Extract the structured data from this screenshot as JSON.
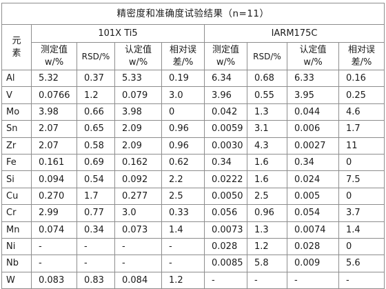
{
  "title": "精密度和准确度试验结果（n=11）",
  "element_header": "元素",
  "groups": [
    "101X Ti5",
    "IARM175C"
  ],
  "subheaders": [
    {
      "line1": "测定值",
      "line2": "w/%"
    },
    {
      "line1": "RSD/%",
      "line2": ""
    },
    {
      "line1": "认定值",
      "line2": "w/%"
    },
    {
      "line1": "相对误",
      "line2": "差/%"
    }
  ],
  "rows": [
    {
      "el": "Al",
      "v": [
        "5.32",
        "0.37",
        "5.33",
        "0.19",
        "6.34",
        "0.68",
        "6.33",
        "0.16"
      ]
    },
    {
      "el": "V",
      "v": [
        "0.0766",
        "1.2",
        "0.079",
        "3.0",
        "3.96",
        "0.55",
        "3.95",
        "0.25"
      ]
    },
    {
      "el": "Mo",
      "v": [
        "3.98",
        "0.66",
        "3.98",
        "0",
        "0.042",
        "1.3",
        "0.044",
        "4.6"
      ]
    },
    {
      "el": "Sn",
      "v": [
        "2.07",
        "0.65",
        "2.09",
        "0.96",
        "0.0059",
        "3.1",
        "0.006",
        "1.7"
      ]
    },
    {
      "el": "Zr",
      "v": [
        "2.07",
        "0.58",
        "2.09",
        "0.96",
        "0.0030",
        "4.3",
        "0.0027",
        "11"
      ]
    },
    {
      "el": "Fe",
      "v": [
        "0.161",
        "0.69",
        "0.162",
        "0.62",
        "0.34",
        "1.6",
        "0.34",
        "0"
      ]
    },
    {
      "el": "Si",
      "v": [
        "0.094",
        "0.54",
        "0.092",
        "2.2",
        "0.0222",
        "1.6",
        "0.024",
        "7.5"
      ]
    },
    {
      "el": "Cu",
      "v": [
        "0.270",
        "1.7",
        "0.277",
        "2.5",
        "0.0050",
        "2.5",
        "0.005",
        "0"
      ]
    },
    {
      "el": "Cr",
      "v": [
        "2.99",
        "0.77",
        "3.0",
        "0.33",
        "0.056",
        "0.96",
        "0.054",
        "3.7"
      ]
    },
    {
      "el": "Mn",
      "v": [
        "0.074",
        "0.34",
        "0.073",
        "1.4",
        "0.0073",
        "1.3",
        "0.0074",
        "1.4"
      ]
    },
    {
      "el": "Ni",
      "v": [
        "-",
        "-",
        "-",
        "-",
        "0.028",
        "1.2",
        "0.028",
        "0"
      ]
    },
    {
      "el": "Nb",
      "v": [
        "-",
        "-",
        "-",
        "-",
        "0.0085",
        "5.8",
        "0.009",
        "5.6"
      ]
    },
    {
      "el": "W",
      "v": [
        "0.083",
        "0.83",
        "0.084",
        "1.2",
        "-",
        "-",
        "-",
        "-"
      ]
    }
  ]
}
